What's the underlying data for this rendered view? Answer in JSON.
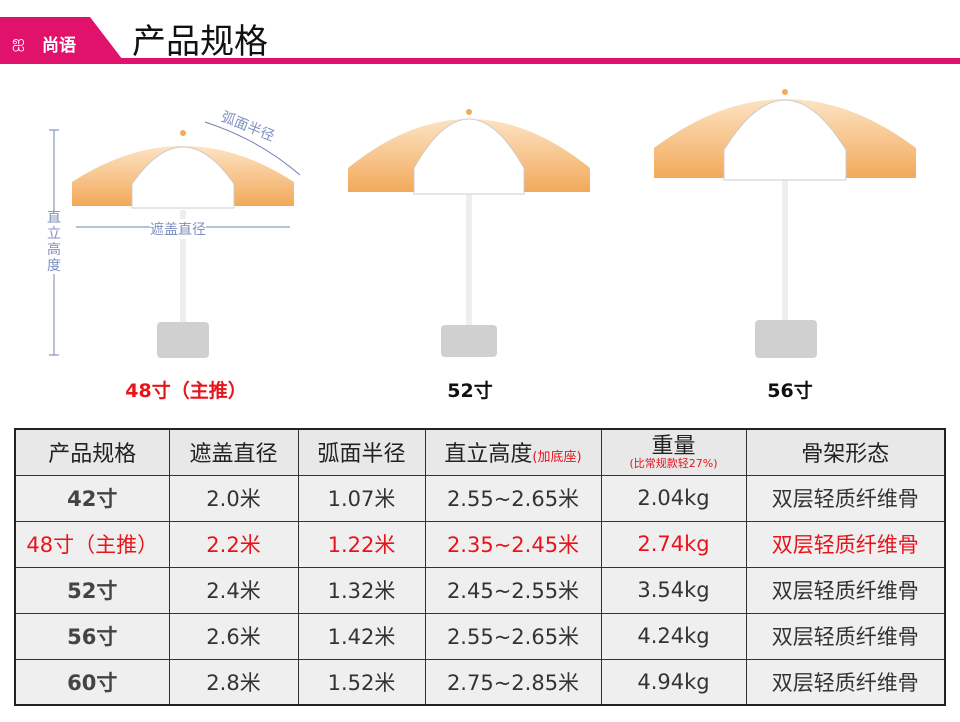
{
  "brand": {
    "logo_text": "尚语",
    "logo_mark": "SS"
  },
  "header": {
    "title": "产品规格"
  },
  "illustration": {
    "labels": {
      "arc_radius": "弧面半径",
      "cover_diameter": "遮盖直径",
      "height": [
        "直",
        "立",
        "高",
        "度"
      ]
    },
    "umbrellas": [
      {
        "caption": "48寸（主推）",
        "color": "#e8141c"
      },
      {
        "caption": "52寸",
        "color": "#111111"
      },
      {
        "caption": "56寸",
        "color": "#111111"
      }
    ],
    "canopy_color": "#f2a95a"
  },
  "table": {
    "headers": [
      "产品规格",
      "遮盖直径",
      "弧面半径",
      "直立高度",
      "重量",
      "骨架形态"
    ],
    "height_note": "(加底座)",
    "weight_note": "(比常规款轻27%)",
    "rows": [
      {
        "size": "42寸",
        "diameter": "2.0米",
        "radius": "1.07米",
        "height": "2.55~2.65米",
        "weight": "2.04kg",
        "frame": "双层轻质纤维骨",
        "highlight": false
      },
      {
        "size": "48寸（主推）",
        "diameter": "2.2米",
        "radius": "1.22米",
        "height": "2.35~2.45米",
        "weight": "2.74kg",
        "frame": "双层轻质纤维骨",
        "highlight": true
      },
      {
        "size": "52寸",
        "diameter": "2.4米",
        "radius": "1.32米",
        "height": "2.45~2.55米",
        "weight": "3.54kg",
        "frame": "双层轻质纤维骨",
        "highlight": false
      },
      {
        "size": "56寸",
        "diameter": "2.6米",
        "radius": "1.42米",
        "height": "2.55~2.65米",
        "weight": "4.24kg",
        "frame": "双层轻质纤维骨",
        "highlight": false
      },
      {
        "size": "60寸",
        "diameter": "2.8米",
        "radius": "1.52米",
        "height": "2.75~2.85米",
        "weight": "4.94kg",
        "frame": "双层轻质纤维骨",
        "highlight": false
      }
    ],
    "highlight_color": "#e8141c"
  }
}
